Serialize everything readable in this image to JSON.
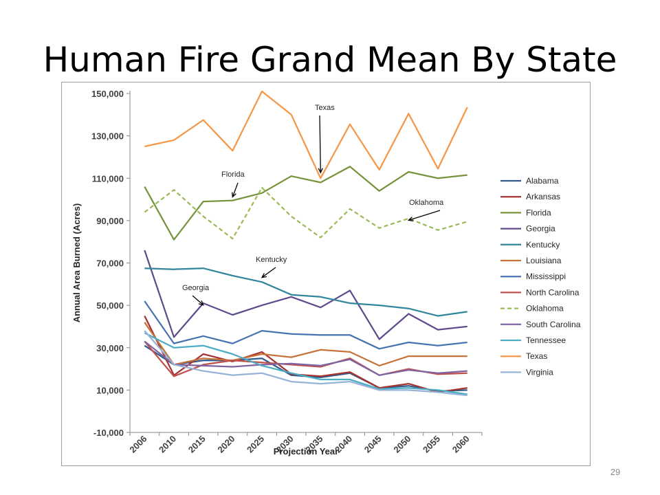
{
  "slide": {
    "title": "Human Fire Grand Mean By State",
    "number": "29"
  },
  "chart_data": {
    "type": "line",
    "xlabel": "Projection Year",
    "ylabel": "Annual Area Burned (Acres)",
    "categories": [
      "2006",
      "2010",
      "2015",
      "2020",
      "2025",
      "2030",
      "2035",
      "2040",
      "2045",
      "2050",
      "2055",
      "2060"
    ],
    "ylim": [
      -10000,
      150000
    ],
    "yticks": [
      -10000,
      10000,
      30000,
      50000,
      70000,
      90000,
      110000,
      130000,
      150000
    ],
    "ytick_labels": [
      "-10,000",
      "10,000",
      "30,000",
      "50,000",
      "70,000",
      "90,000",
      "110,000",
      "130,000",
      "150,000"
    ],
    "grid": false,
    "legend_position": "right",
    "series": [
      {
        "name": "Alabama",
        "color": "#2f5b8c",
        "dashed": false,
        "values": [
          31000,
          22000,
          24000,
          24000,
          25000,
          17000,
          16000,
          18000,
          11000,
          12000,
          9500,
          10000
        ]
      },
      {
        "name": "Arkansas",
        "color": "#a5332f",
        "dashed": false,
        "values": [
          45000,
          17000,
          27000,
          23500,
          28000,
          17500,
          16500,
          18500,
          11000,
          13000,
          9000,
          11000
        ]
      },
      {
        "name": "Florida",
        "color": "#77933c",
        "dashed": false,
        "values": [
          106000,
          81000,
          99000,
          99500,
          103000,
          111000,
          108000,
          115500,
          104000,
          113000,
          110000,
          111500
        ]
      },
      {
        "name": "Georgia",
        "color": "#5f4a8b",
        "dashed": false,
        "values": [
          76000,
          35000,
          51000,
          45500,
          50000,
          54000,
          49000,
          57000,
          34000,
          46000,
          38500,
          40000
        ]
      },
      {
        "name": "Kentucky",
        "color": "#31859c",
        "dashed": false,
        "values": [
          67500,
          67000,
          67500,
          64000,
          61000,
          55000,
          54000,
          51000,
          50000,
          48500,
          45000,
          47000
        ]
      },
      {
        "name": "Louisiana",
        "color": "#c6723b",
        "dashed": false,
        "values": [
          42000,
          22000,
          25000,
          24000,
          27000,
          25500,
          29000,
          28000,
          21500,
          26000,
          26000,
          26000
        ]
      },
      {
        "name": "Mississippi",
        "color": "#4774b0",
        "dashed": false,
        "values": [
          52000,
          32000,
          35500,
          32000,
          38000,
          36500,
          36000,
          36000,
          29500,
          32500,
          31000,
          32500
        ]
      },
      {
        "name": "North Carolina",
        "color": "#c0504d",
        "dashed": false,
        "values": [
          33000,
          16500,
          22000,
          24000,
          23000,
          22000,
          21000,
          25000,
          17000,
          20000,
          17500,
          18000
        ]
      },
      {
        "name": "Oklahoma",
        "color": "#9bbb59",
        "dashed": true,
        "values": [
          94000,
          104500,
          92000,
          81500,
          105500,
          92000,
          82000,
          95500,
          86500,
          91000,
          85500,
          89500
        ]
      },
      {
        "name": "South Carolina",
        "color": "#8064a2",
        "dashed": false,
        "values": [
          33000,
          22000,
          21500,
          21000,
          22000,
          22500,
          21500,
          24500,
          17000,
          19500,
          18000,
          19000
        ]
      },
      {
        "name": "Tennessee",
        "color": "#4bacc6",
        "dashed": false,
        "values": [
          37000,
          30000,
          31000,
          27000,
          21500,
          18000,
          15000,
          15000,
          10500,
          11000,
          10000,
          8000
        ]
      },
      {
        "name": "Texas",
        "color": "#f79646",
        "dashed": false,
        "values": [
          125000,
          128000,
          137500,
          123000,
          151000,
          140000,
          110000,
          135500,
          114000,
          140500,
          114500,
          143500
        ]
      },
      {
        "name": "Virginia",
        "color": "#95b3d7",
        "dashed": false,
        "values": [
          38000,
          22000,
          19000,
          17000,
          18000,
          14000,
          13000,
          14000,
          10000,
          10000,
          9000,
          7500
        ]
      }
    ],
    "annotations": [
      {
        "text": "Texas",
        "series": "Texas",
        "category": "2035",
        "value": 112000
      },
      {
        "text": "Florida",
        "series": "Florida",
        "category": "2020",
        "value": 100500
      },
      {
        "text": "Oklahoma",
        "series": "Oklahoma",
        "category": "2050",
        "value": 89500
      },
      {
        "text": "Kentucky",
        "series": "Kentucky",
        "category": "2025",
        "value": 62500
      },
      {
        "text": "Georgia",
        "series": "Georgia",
        "category": "2015",
        "value": 49500
      }
    ]
  }
}
